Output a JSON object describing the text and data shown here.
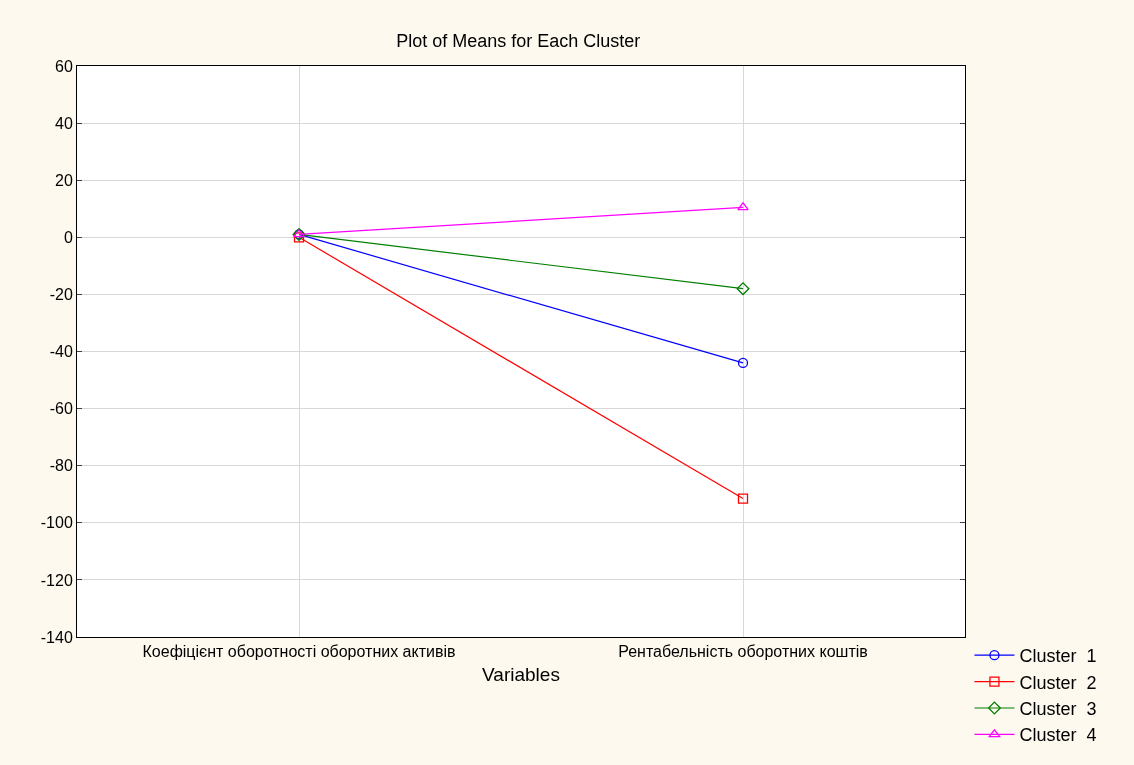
{
  "chart_data": {
    "type": "line",
    "title": "Plot of Means for Each Cluster",
    "xlabel": "Variables",
    "categories": [
      "Коефіцієнт оборотності оборотних активів",
      "Рентабельність оборотних коштів"
    ],
    "series": [
      {
        "name": "Cluster  1",
        "color": "#0000ff",
        "marker": "circle",
        "values": [
          1,
          -44
        ]
      },
      {
        "name": "Cluster  2",
        "color": "#ff0000",
        "marker": "square",
        "values": [
          0,
          -91.5
        ]
      },
      {
        "name": "Cluster  3",
        "color": "#008000",
        "marker": "diamond",
        "values": [
          1,
          -18
        ]
      },
      {
        "name": "Cluster  4",
        "color": "#ff00ff",
        "marker": "triangle",
        "values": [
          1,
          10.5
        ]
      }
    ],
    "ylim": [
      -140,
      60
    ],
    "yticks": [
      -140,
      -120,
      -100,
      -80,
      -60,
      -40,
      -20,
      0,
      20,
      40,
      60
    ],
    "grid": true,
    "legend": "bottom right",
    "line_style": "solid"
  }
}
